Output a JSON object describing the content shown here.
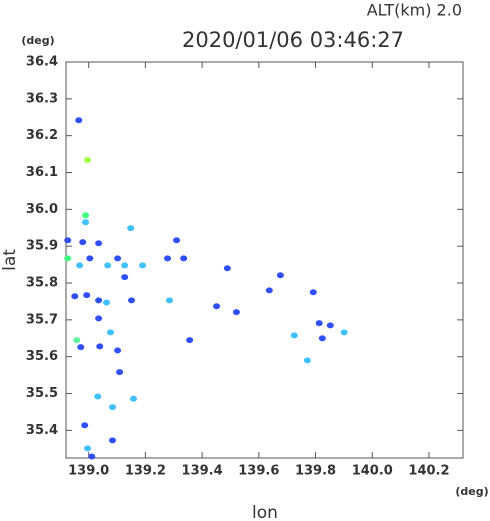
{
  "chart_data": {
    "type": "scatter",
    "title": "2020/01/06 03:46:27",
    "subtitle": "ALT(km) 2.0",
    "x_label": "lon",
    "y_label": "lat",
    "x_unit": "(deg)",
    "y_unit": "(deg)",
    "xlim": [
      138.92,
      140.32
    ],
    "ylim": [
      35.325,
      36.4
    ],
    "xticks": [
      {
        "value": 139,
        "label": "139.0"
      },
      139.2,
      139.4,
      139.6,
      139.8,
      {
        "value": 140,
        "label": "140.0"
      },
      140.2
    ],
    "yticks": [
      36.4,
      36.3,
      36.2,
      36.1,
      {
        "value": 36,
        "label": "36.0"
      },
      35.9,
      35.8,
      35.7,
      35.6,
      35.5,
      35.4
    ],
    "x": [
      138.965,
      138.996,
      138.989,
      138.989,
      138.926,
      138.979,
      139.035,
      138.926,
      139.004,
      138.968,
      138.951,
      138.993,
      139.035,
      139.063,
      139.148,
      139.102,
      139.127,
      139.19,
      139.067,
      139.127,
      139.151,
      139.278,
      139.31,
      139.335,
      139.285,
      139.489,
      139.451,
      139.356,
      139.521,
      139.637,
      139.676,
      139.792,
      139.813,
      139.852,
      139.901,
      139.824,
      139.725,
      139.771,
      138.958,
      138.972,
      139.035,
      139.077,
      139.039,
      139.102,
      139.109,
      139.032,
      139.158,
      139.084,
      139.084,
      138.996,
      139.011,
      138.986
    ],
    "values": [
      36.242,
      36.134,
      35.984,
      35.965,
      35.916,
      35.911,
      35.908,
      35.867,
      35.867,
      35.848,
      35.764,
      35.767,
      35.753,
      35.747,
      35.949,
      35.867,
      35.848,
      35.848,
      35.848,
      35.816,
      35.753,
      35.867,
      35.916,
      35.867,
      35.753,
      35.84,
      35.737,
      35.645,
      35.721,
      35.78,
      35.821,
      35.775,
      35.691,
      35.685,
      35.666,
      35.65,
      35.658,
      35.59,
      35.645,
      35.626,
      35.704,
      35.666,
      35.628,
      35.617,
      35.558,
      35.492,
      35.486,
      35.463,
      35.373,
      35.351,
      35.329,
      35.414
    ],
    "colors": [
      "#3050ff",
      "#a0ff40",
      "#40ff80",
      "#40c0ff",
      "#3050ff",
      "#3050ff",
      "#3050ff",
      "#40ff80",
      "#3050ff",
      "#40c0ff",
      "#3050ff",
      "#3050ff",
      "#3050ff",
      "#40c0ff",
      "#40c0ff",
      "#3050ff",
      "#40c0ff",
      "#40c0ff",
      "#40c0ff",
      "#3050ff",
      "#3050ff",
      "#3050ff",
      "#3050ff",
      "#3050ff",
      "#40c0ff",
      "#3050ff",
      "#3050ff",
      "#3050ff",
      "#3050ff",
      "#3050ff",
      "#3050ff",
      "#3050ff",
      "#3050ff",
      "#3050ff",
      "#40c0ff",
      "#3050ff",
      "#40c0ff",
      "#40c0ff",
      "#60f0a0",
      "#3050ff",
      "#3050ff",
      "#40c0ff",
      "#3050ff",
      "#3050ff",
      "#3050ff",
      "#40c0ff",
      "#40c0ff",
      "#40c0ff",
      "#3050ff",
      "#40c0ff",
      "#3050ff",
      "#3050ff"
    ]
  }
}
